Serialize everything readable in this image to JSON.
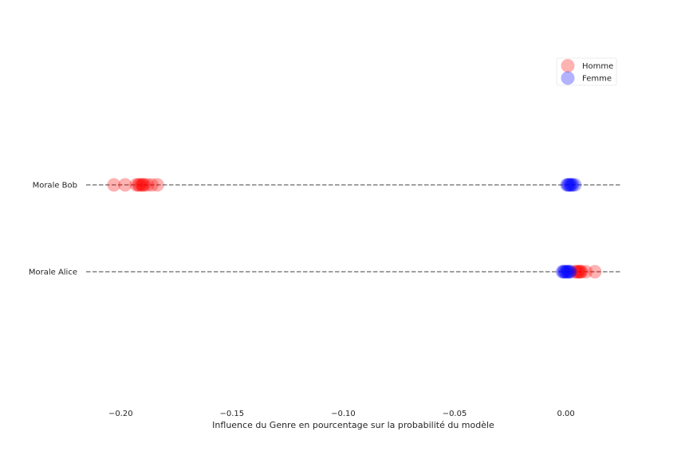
{
  "chart_data": {
    "type": "scatter",
    "xlabel": "Influence du Genre en pourcentage sur la probabilité du modèle",
    "ylabel": "",
    "xlim": [
      -0.2155,
      0.0245
    ],
    "x_ticks": [
      {
        "value": -0.2,
        "label": "−0.20"
      },
      {
        "value": -0.15,
        "label": "−0.15"
      },
      {
        "value": -0.1,
        "label": "−0.10"
      },
      {
        "value": -0.05,
        "label": "−0.05"
      },
      {
        "value": 0.0,
        "label": "0.00"
      }
    ],
    "categories": [
      "Morale Bob",
      "Morale Alice"
    ],
    "grid": false,
    "legend_position": "top-right",
    "series": [
      {
        "name": "Homme",
        "color": "#ff0000",
        "opacity": 0.3,
        "points": [
          {
            "category": "Morale Bob",
            "x": -0.203
          },
          {
            "category": "Morale Bob",
            "x": -0.198
          },
          {
            "category": "Morale Bob",
            "x": -0.193
          },
          {
            "category": "Morale Bob",
            "x": -0.192
          },
          {
            "category": "Morale Bob",
            "x": -0.1915
          },
          {
            "category": "Morale Bob",
            "x": -0.1905
          },
          {
            "category": "Morale Bob",
            "x": -0.19
          },
          {
            "category": "Morale Bob",
            "x": -0.1895
          },
          {
            "category": "Morale Bob",
            "x": -0.188
          },
          {
            "category": "Morale Bob",
            "x": -0.186
          },
          {
            "category": "Morale Bob",
            "x": -0.1835
          },
          {
            "category": "Morale Alice",
            "x": 0.004
          },
          {
            "category": "Morale Alice",
            "x": 0.005
          },
          {
            "category": "Morale Alice",
            "x": 0.0055
          },
          {
            "category": "Morale Alice",
            "x": 0.006
          },
          {
            "category": "Morale Alice",
            "x": 0.0065
          },
          {
            "category": "Morale Alice",
            "x": 0.007
          },
          {
            "category": "Morale Alice",
            "x": 0.009
          },
          {
            "category": "Morale Alice",
            "x": 0.013
          }
        ]
      },
      {
        "name": "Femme",
        "color": "#0000ff",
        "opacity": 0.3,
        "points": [
          {
            "category": "Morale Bob",
            "x": 0.0005
          },
          {
            "category": "Morale Bob",
            "x": 0.001
          },
          {
            "category": "Morale Bob",
            "x": 0.0015
          },
          {
            "category": "Morale Bob",
            "x": 0.002
          },
          {
            "category": "Morale Bob",
            "x": 0.0025
          },
          {
            "category": "Morale Bob",
            "x": 0.003
          },
          {
            "category": "Morale Bob",
            "x": 0.004
          },
          {
            "category": "Morale Alice",
            "x": -0.0015
          },
          {
            "category": "Morale Alice",
            "x": -0.001
          },
          {
            "category": "Morale Alice",
            "x": -0.0005
          },
          {
            "category": "Morale Alice",
            "x": 0.0
          },
          {
            "category": "Morale Alice",
            "x": 0.0005
          },
          {
            "category": "Morale Alice",
            "x": 0.001
          },
          {
            "category": "Morale Alice",
            "x": 0.0015
          },
          {
            "category": "Morale Alice",
            "x": 0.002
          }
        ]
      }
    ]
  }
}
